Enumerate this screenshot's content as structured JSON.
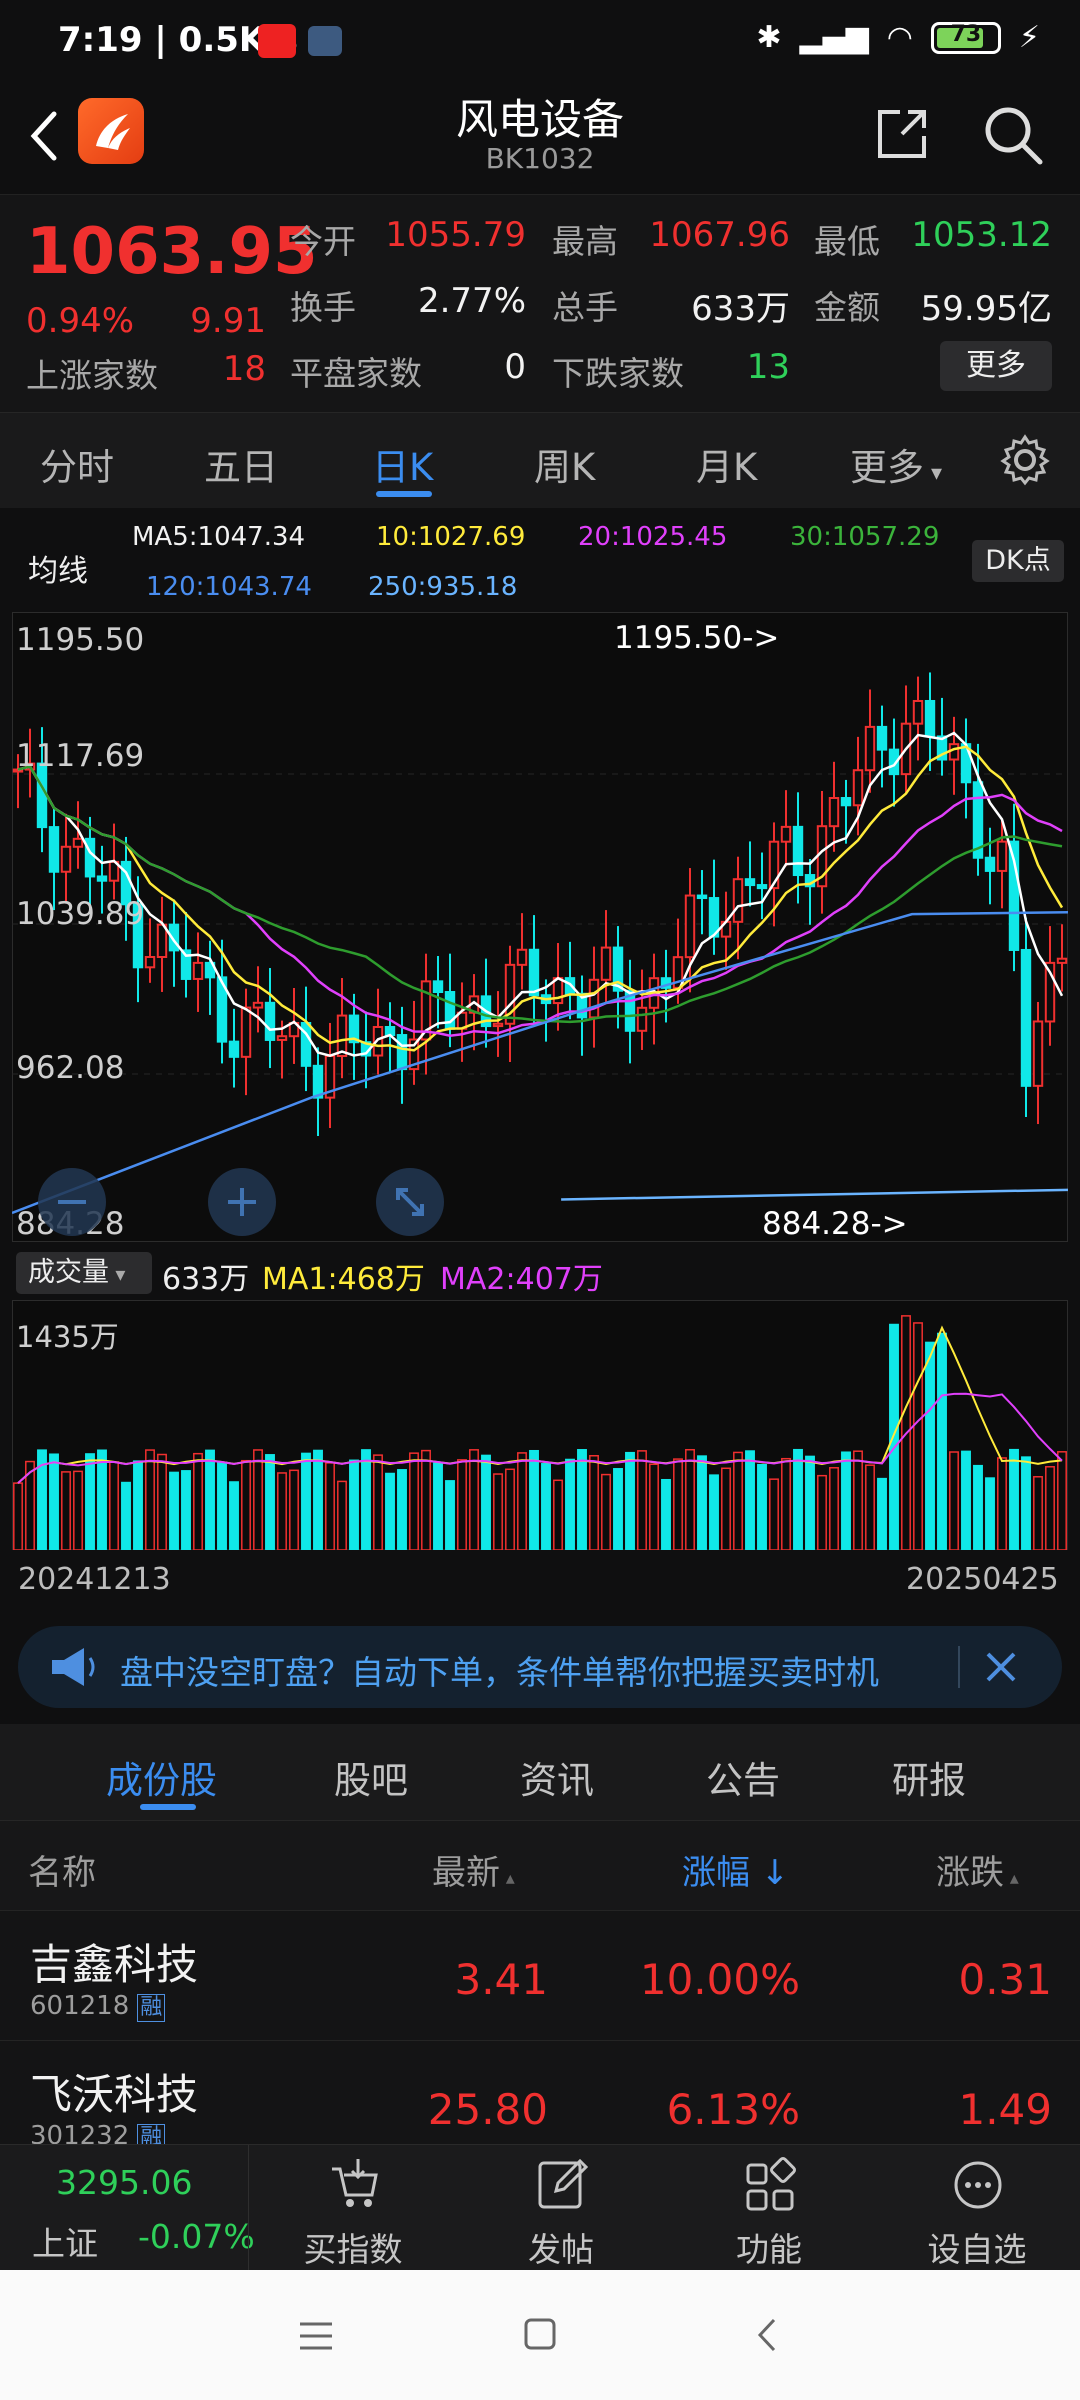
{
  "status_bar": {
    "time": "7:19 | 0.5K/s",
    "battery": "73"
  },
  "header": {
    "title": "风电设备",
    "code": "BK1032"
  },
  "quote": {
    "price": "1063.95",
    "change_pct": "0.94%",
    "change": "9.91",
    "rise_label": "上涨家数",
    "rise_count": "18",
    "open_label": "今开",
    "open": "1055.79",
    "high_label": "最高",
    "high": "1067.96",
    "low_label": "最低",
    "low": "1053.12",
    "turnover_label": "换手",
    "turnover": "2.77%",
    "volume_label": "总手",
    "volume": "633万",
    "amount_label": "金额",
    "amount": "59.95亿",
    "flat_label": "平盘家数",
    "flat_count": "0",
    "fall_label": "下跌家数",
    "fall_count": "13",
    "more_label": "更多"
  },
  "ktabs": [
    "分时",
    "五日",
    "日K",
    "周K",
    "月K",
    "更多"
  ],
  "ma_row": {
    "label": "均线",
    "ma5": "MA5:1047.34",
    "ma10": "10:1027.69",
    "ma20": "20:1025.45",
    "ma30": "30:1057.29",
    "ma120": "120:1043.74",
    "ma250": "250:935.18",
    "dk_label": "DK点"
  },
  "chart": {
    "y_labels": [
      "1195.50",
      "1117.69",
      "1039.89",
      "962.08",
      "884.28"
    ],
    "high_marker": "1195.50->",
    "low_marker": "884.28->"
  },
  "volume": {
    "selector": "成交量",
    "value": "633万",
    "ma1": "MA1:468万",
    "ma2": "MA2:407万",
    "y_top": "1435万",
    "start_date": "20241213",
    "end_date": "20250425"
  },
  "banner": {
    "text": "盘中没空盯盘？自动下单，条件单帮你把握买卖时机"
  },
  "content_tabs": [
    "成份股",
    "股吧",
    "资讯",
    "公告",
    "研报"
  ],
  "table": {
    "headers": {
      "name": "名称",
      "last": "最新",
      "pct": "涨幅",
      "chg": "涨跌"
    },
    "rows": [
      {
        "name": "吉鑫科技",
        "code": "601218",
        "tag": "融",
        "last": "3.41",
        "pct": "10.00%",
        "chg": "0.31"
      },
      {
        "name": "飞沃科技",
        "code": "301232",
        "tag": "融",
        "last": "25.80",
        "pct": "6.13%",
        "chg": "1.49"
      }
    ]
  },
  "bottom_nav": {
    "index_value": "3295.06",
    "index_name": "上证",
    "index_change": "-0.07%",
    "items": [
      "买指数",
      "发帖",
      "功能",
      "设自选"
    ]
  },
  "colors": {
    "up": "#f0302f",
    "down": "#2fd05a",
    "accent": "#3b8df0",
    "ma5": "#ffffff",
    "ma10": "#ffeb3b",
    "ma20": "#e040fb",
    "ma30": "#2e9d2e",
    "ma120": "#4a8df0",
    "ma250": "#6ab4ff"
  }
}
